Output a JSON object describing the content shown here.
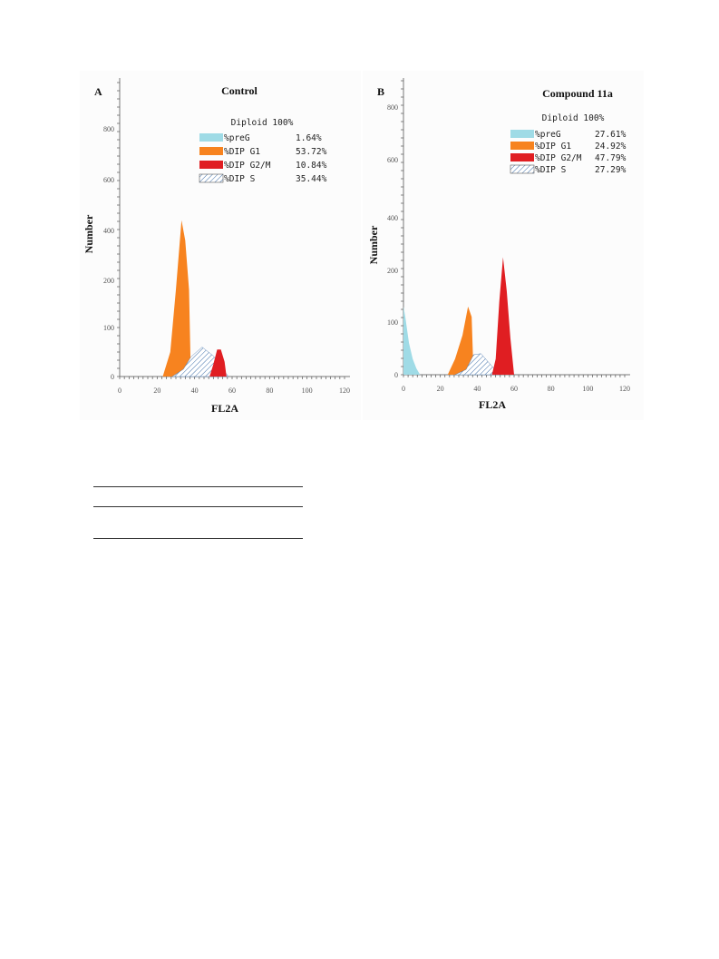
{
  "chart_data": [
    {
      "type": "area",
      "panel": "A",
      "title": "Control",
      "xlabel": "FL2A",
      "ylabel": "Number",
      "xlim": [
        0,
        120
      ],
      "ylim": [
        0,
        1000
      ],
      "x_ticks": [
        0,
        20,
        40,
        60,
        80,
        100,
        120
      ],
      "y_ticks": [
        0,
        100,
        200,
        400,
        600,
        800
      ],
      "grid": false,
      "legend_position": "top-right",
      "diploid_label": "Diploid 100%",
      "legend": [
        {
          "name": "%preG",
          "value": "1.64%",
          "color": "#9fdbe6"
        },
        {
          "name": "%DIP G1",
          "value": "53.72%",
          "color": "#f7831f"
        },
        {
          "name": "%DIP G2/M",
          "value": "10.84%",
          "color": "#e01e22"
        },
        {
          "name": "%DIP S",
          "value": "35.44%",
          "color": "#ffffff",
          "pattern": "hatched"
        }
      ],
      "series": [
        {
          "name": "%DIP G1",
          "fill": "#f7831f",
          "points": [
            [
              23,
              0
            ],
            [
              27,
              50
            ],
            [
              30,
              180
            ],
            [
              33,
              440
            ],
            [
              35,
              360
            ],
            [
              37,
              180
            ],
            [
              38,
              0
            ]
          ]
        },
        {
          "name": "%DIP S",
          "fill": "pattern",
          "points": [
            [
              28,
              0
            ],
            [
              34,
              15
            ],
            [
              38,
              40
            ],
            [
              44,
              60
            ],
            [
              50,
              42
            ],
            [
              55,
              15
            ],
            [
              58,
              0
            ]
          ]
        },
        {
          "name": "%DIP G2/M",
          "fill": "#e01e22",
          "points": [
            [
              48,
              0
            ],
            [
              50,
              25
            ],
            [
              52,
              55
            ],
            [
              54,
              55
            ],
            [
              56,
              30
            ],
            [
              57,
              0
            ]
          ]
        }
      ]
    },
    {
      "type": "area",
      "panel": "B",
      "title": "Compound 11a",
      "xlabel": "FL2A",
      "ylabel": "Number",
      "xlim": [
        0,
        120
      ],
      "ylim": [
        0,
        1000
      ],
      "x_ticks": [
        0,
        20,
        40,
        60,
        80,
        100,
        120
      ],
      "y_ticks": [
        0,
        100,
        200,
        400,
        600,
        800
      ],
      "grid": false,
      "legend_position": "top-right",
      "diploid_label": "Diploid 100%",
      "legend": [
        {
          "name": "%preG",
          "value": "27.61%",
          "color": "#9fdbe6"
        },
        {
          "name": "%DIP G1",
          "value": "24.92%",
          "color": "#f7831f"
        },
        {
          "name": "%DIP G2/M",
          "value": "47.79%",
          "color": "#e01e22"
        },
        {
          "name": "%DIP S",
          "value": "27.29%",
          "color": "#ffffff",
          "pattern": "hatched"
        }
      ],
      "series": [
        {
          "name": "%preG",
          "fill": "#9fdbe6",
          "points": [
            [
              0,
              0
            ],
            [
              0,
              130
            ],
            [
              1,
              110
            ],
            [
              3,
              60
            ],
            [
              5,
              30
            ],
            [
              7,
              12
            ],
            [
              9,
              0
            ]
          ]
        },
        {
          "name": "%DIP G1",
          "fill": "#f7831f",
          "points": [
            [
              24,
              0
            ],
            [
              28,
              30
            ],
            [
              32,
              75
            ],
            [
              35,
              130
            ],
            [
              37,
              110
            ],
            [
              38,
              0
            ]
          ]
        },
        {
          "name": "%DIP S",
          "fill": "pattern",
          "points": [
            [
              28,
              0
            ],
            [
              34,
              10
            ],
            [
              38,
              38
            ],
            [
              42,
              40
            ],
            [
              47,
              20
            ],
            [
              52,
              0
            ]
          ]
        },
        {
          "name": "%DIP G2/M",
          "fill": "#e01e22",
          "points": [
            [
              48,
              0
            ],
            [
              50,
              30
            ],
            [
              52,
              140
            ],
            [
              54,
              250
            ],
            [
              56,
              160
            ],
            [
              58,
              70
            ],
            [
              60,
              0
            ]
          ]
        }
      ]
    }
  ]
}
